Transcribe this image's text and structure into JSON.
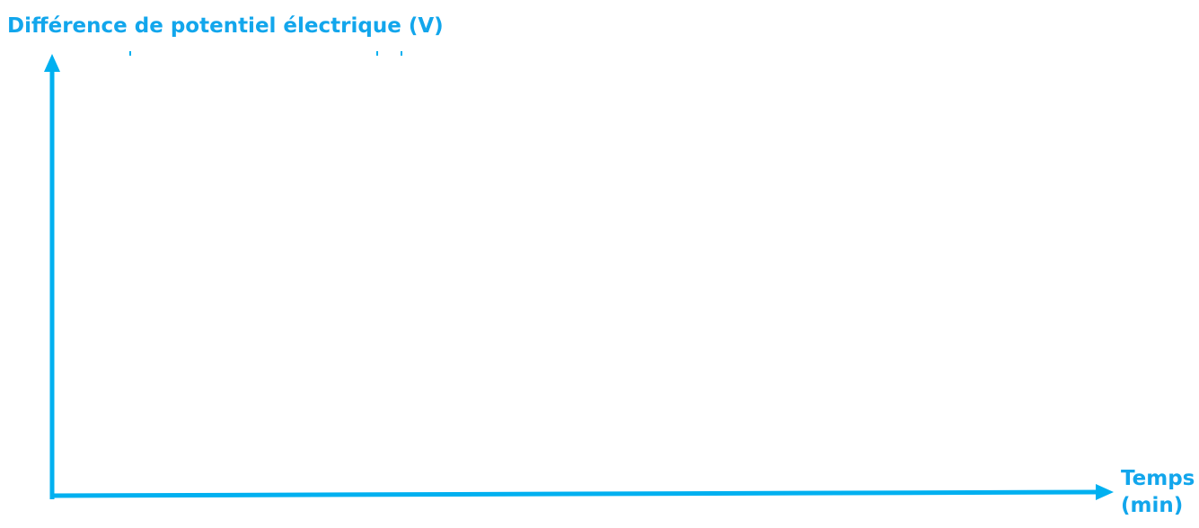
{
  "y_axis_label": "Différence de potentiel électrique (V)",
  "x_axis_label": "Temps (min)"
}
